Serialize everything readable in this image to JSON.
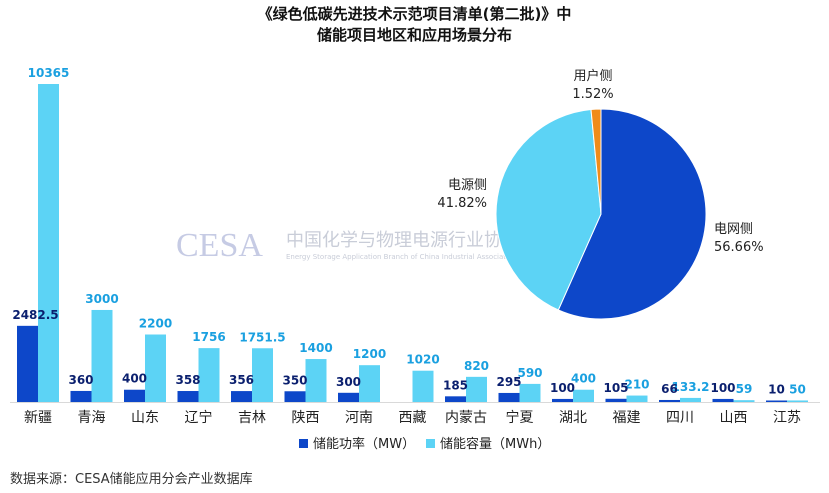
{
  "title_line1": "《绿色低碳先进技术示范项目清单(第二批)》中",
  "title_line2": "储能项目地区和应用场景分布",
  "source_note": "数据来源：CESA储能应用分会产业数据库",
  "watermark": {
    "logo_text": "CESA",
    "name_cn": "中国化学与物理电源行业协会储能应用分会",
    "name_en": "Energy Storage Application Branch of China Industrial Association of Power Sources"
  },
  "colors": {
    "power": "#0d47c9",
    "capacity": "#5cd3f5",
    "label_power": "#0a1f6e",
    "label_capacity": "#1aa0e0",
    "user_side": "#f08c1a"
  },
  "chart_data": [
    {
      "type": "bar",
      "categories": [
        "新疆",
        "青海",
        "山东",
        "辽宁",
        "吉林",
        "陕西",
        "河南",
        "西藏",
        "内蒙古",
        "宁夏",
        "湖北",
        "福建",
        "四川",
        "山西",
        "江苏"
      ],
      "series": [
        {
          "name": "储能功率（MW）",
          "values": [
            2482.5,
            360,
            400,
            358,
            356,
            350,
            300,
            null,
            185,
            295,
            100,
            105,
            66,
            100,
            10
          ],
          "labels": [
            "2482.5",
            "360",
            "400",
            "358",
            "356",
            "350",
            "300",
            "",
            "185",
            "295",
            "100",
            "105",
            "66",
            "100",
            "10"
          ]
        },
        {
          "name": "储能容量（MWh）",
          "values": [
            10365,
            3000,
            2200,
            1756,
            1751.5,
            1400,
            1200,
            1020,
            820,
            590,
            400,
            210,
            133.2,
            59,
            50
          ],
          "labels": [
            "10365",
            "3000",
            "2200",
            "1756",
            "1751.5",
            "1400",
            "1200",
            "1020",
            "820",
            "590",
            "400",
            "210",
            "133.2",
            "59",
            "50"
          ]
        }
      ],
      "ylim": [
        0,
        10365
      ],
      "legend_position": "bottom"
    },
    {
      "type": "pie",
      "title": "",
      "slices": [
        {
          "name": "电网侧",
          "value": 56.66,
          "label": "56.66%"
        },
        {
          "name": "电源侧",
          "value": 41.82,
          "label": "41.82%"
        },
        {
          "name": "用户侧",
          "value": 1.52,
          "label": "1.52%"
        }
      ]
    }
  ]
}
